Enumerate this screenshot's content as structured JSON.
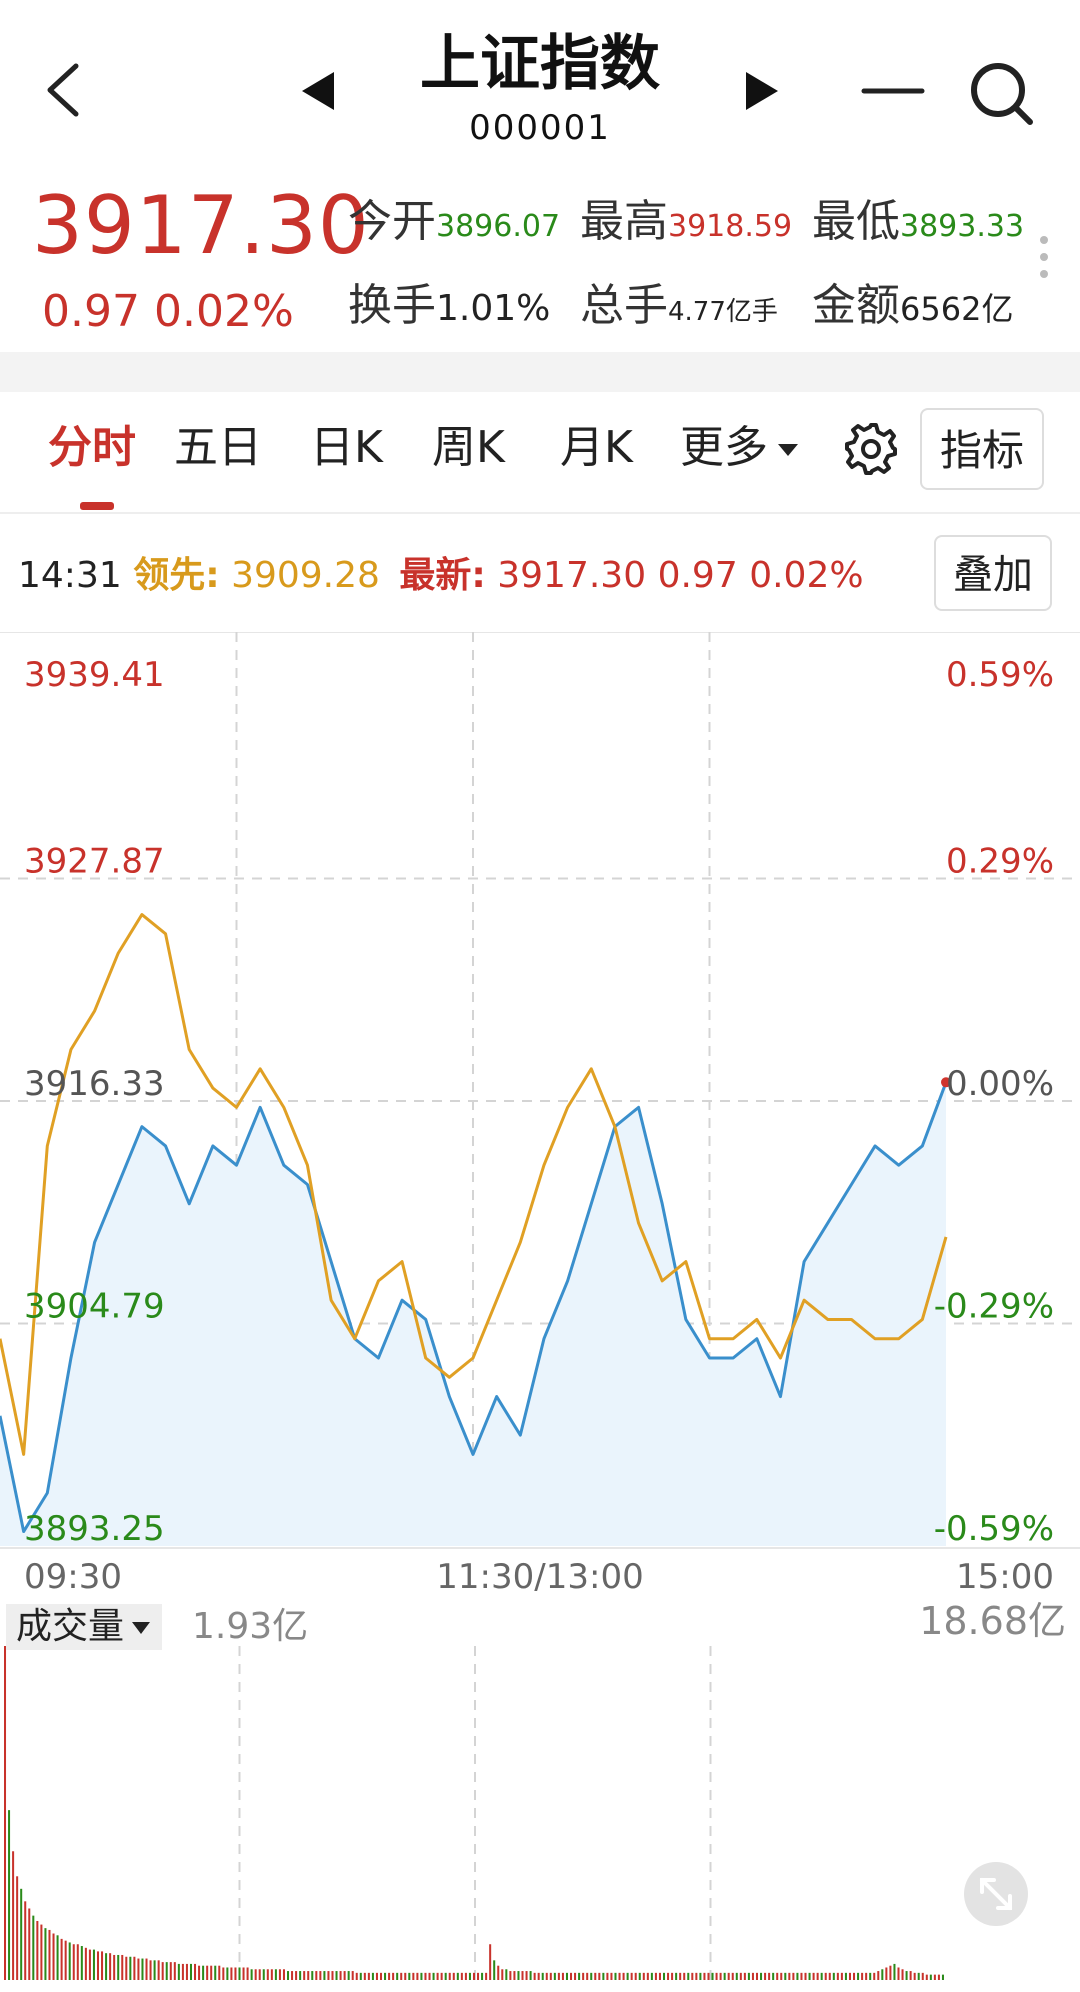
{
  "header": {
    "title": "上证指数",
    "code": "000001"
  },
  "quote": {
    "last": "3917.30",
    "change": "0.97",
    "change_pct": "0.02%",
    "stats": {
      "open_label": "今开",
      "open_value": "3896.07",
      "high_label": "最高",
      "high_value": "3918.59",
      "low_label": "最低",
      "low_value": "3893.33",
      "turnover_label": "换手",
      "turnover_value": "1.01%",
      "volume_label": "总手",
      "volume_value": "4.77亿手",
      "amount_label": "金额",
      "amount_value": "6562亿"
    }
  },
  "tabs": [
    "分时",
    "五日",
    "日K",
    "周K",
    "月K",
    "更多"
  ],
  "active_tab": "分时",
  "toolbar": {
    "indicator_label": "指标",
    "overlay_label": "叠加"
  },
  "info_line": {
    "time": "14:31",
    "lead_label": "领先:",
    "lead_value": "3909.28",
    "latest_label": "最新:",
    "latest_value": "3917.30",
    "latest_change": "0.97",
    "latest_pct": "0.02%"
  },
  "chart_data": {
    "type": "line",
    "x_ticks": [
      "09:30",
      "11:30/13:00",
      "15:00"
    ],
    "y_left_ticks": [
      "3939.41",
      "3927.87",
      "3916.33",
      "3904.79",
      "3893.25"
    ],
    "y_right_ticks": [
      "0.59%",
      "0.29%",
      "0.00%",
      "-0.29%",
      "-0.59%"
    ],
    "ylim": [
      3893.25,
      3939.41
    ],
    "prev_close": 3916.33,
    "x_minutes": [
      0,
      6,
      12,
      18,
      24,
      30,
      36,
      42,
      48,
      54,
      60,
      66,
      72,
      78,
      84,
      90,
      96,
      102,
      108,
      114,
      120,
      126,
      132,
      138,
      144,
      150,
      156,
      162,
      168,
      174,
      180,
      186,
      192,
      198,
      204,
      210,
      216,
      222,
      228,
      234,
      240
    ],
    "series": [
      {
        "color": "#3a8fcc",
        "fill": "#eaf4fc",
        "values": [
          3900,
          3894,
          3896,
          3903,
          3909,
          3912,
          3915,
          3914,
          3911,
          3914,
          3913,
          3916,
          3913,
          3912,
          3908,
          3904,
          3903,
          3906,
          3905,
          3901,
          3898,
          3901,
          3899,
          3904,
          3907,
          3911,
          3915,
          3916,
          3911,
          3905,
          3903,
          3903,
          3904,
          3901,
          3908,
          3910,
          3912,
          3914,
          3913,
          3914,
          3917.3
        ]
      },
      {
        "color": "#e0a024",
        "values": [
          3904,
          3898,
          3914,
          3919,
          3921,
          3924,
          3926,
          3925,
          3919,
          3917,
          3916,
          3918,
          3916,
          3913,
          3906,
          3904,
          3907,
          3908,
          3903,
          3902,
          3903,
          3906,
          3909,
          3913,
          3916,
          3918,
          3915,
          3910,
          3907,
          3908,
          3904,
          3904,
          3905,
          3903,
          3906,
          3905,
          3905,
          3904,
          3904,
          3905,
          3909.28
        ]
      }
    ]
  },
  "volume": {
    "selector_label": "成交量",
    "current_value": "1.93亿",
    "max_label": "18.68亿",
    "bars": [
      18.68,
      9.5,
      7.2,
      5.8,
      5.1,
      4.4,
      4.0,
      3.6,
      3.3,
      3.1,
      2.9,
      2.8,
      2.6,
      2.5,
      2.3,
      2.2,
      2.1,
      2.0,
      2.0,
      1.9,
      1.8,
      1.7,
      1.7,
      1.6,
      1.6,
      1.5,
      1.5,
      1.4,
      1.4,
      1.4,
      1.3,
      1.3,
      1.3,
      1.2,
      1.2,
      1.2,
      1.1,
      1.1,
      1.1,
      1.0,
      1.0,
      1.0,
      1.0,
      0.9,
      0.9,
      0.9,
      0.9,
      0.9,
      0.8,
      0.8,
      0.8,
      0.8,
      0.8,
      0.8,
      0.7,
      0.7,
      0.7,
      0.7,
      0.7,
      0.7,
      0.7,
      0.6,
      0.6,
      0.6,
      0.6,
      0.6,
      0.6,
      0.6,
      0.6,
      0.6,
      0.5,
      0.5,
      0.5,
      0.5,
      0.5,
      0.5,
      0.5,
      0.5,
      0.5,
      0.5,
      0.5,
      0.5,
      0.5,
      0.5,
      0.5,
      0.5,
      0.5,
      0.4,
      0.4,
      0.4,
      0.4,
      0.4,
      0.4,
      0.4,
      0.4,
      0.4,
      0.4,
      0.4,
      0.4,
      0.4,
      0.4,
      0.4,
      0.4,
      0.4,
      0.4,
      0.4,
      0.4,
      0.4,
      0.4,
      0.4,
      0.4,
      0.4,
      0.4,
      0.4,
      0.4,
      0.4,
      0.4,
      0.4,
      0.4,
      0.4,
      2.0,
      1.1,
      0.8,
      0.6,
      0.6,
      0.5,
      0.5,
      0.5,
      0.5,
      0.5,
      0.5,
      0.4,
      0.4,
      0.4,
      0.4,
      0.4,
      0.4,
      0.4,
      0.4,
      0.4,
      0.4,
      0.4,
      0.4,
      0.4,
      0.4,
      0.4,
      0.4,
      0.4,
      0.4,
      0.4,
      0.4,
      0.4,
      0.4,
      0.4,
      0.4,
      0.4,
      0.4,
      0.4,
      0.4,
      0.4,
      0.4,
      0.4,
      0.4,
      0.4,
      0.4,
      0.4,
      0.4,
      0.4,
      0.4,
      0.4,
      0.4,
      0.4,
      0.4,
      0.4,
      0.4,
      0.4,
      0.4,
      0.4,
      0.4,
      0.4,
      0.4,
      0.4,
      0.4,
      0.4,
      0.4,
      0.4,
      0.4,
      0.4,
      0.4,
      0.4,
      0.4,
      0.4,
      0.4,
      0.4,
      0.4,
      0.4,
      0.4,
      0.4,
      0.4,
      0.4,
      0.4,
      0.4,
      0.4,
      0.4,
      0.4,
      0.4,
      0.4,
      0.4,
      0.4,
      0.4,
      0.4,
      0.4,
      0.4,
      0.4,
      0.4,
      0.4,
      0.5,
      0.6,
      0.7,
      0.8,
      0.9,
      0.7,
      0.6,
      0.5,
      0.5,
      0.4,
      0.4,
      0.4,
      0.3,
      0.3,
      0.3,
      0.3,
      0.3
    ]
  }
}
